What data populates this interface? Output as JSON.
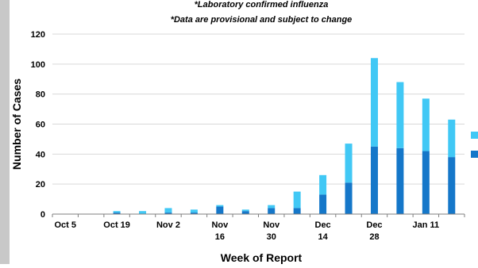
{
  "chart_data": {
    "type": "bar",
    "stacked": true,
    "title_lines": [
      "*Laboratory confirmed influenza",
      "*Data are provisional and subject to change"
    ],
    "xlabel": "Week of Report",
    "ylabel": "Number of Cases",
    "ylim": [
      0,
      120
    ],
    "yticks": [
      0,
      20,
      40,
      60,
      80,
      100,
      120
    ],
    "grid": true,
    "legend_position": "right",
    "x_tick_labels": [
      {
        "week_index": 0,
        "lines": [
          "Oct 5"
        ]
      },
      {
        "week_index": 2,
        "lines": [
          "Oct 19"
        ]
      },
      {
        "week_index": 4,
        "lines": [
          "Nov 2"
        ]
      },
      {
        "week_index": 6,
        "lines": [
          "Nov",
          "16"
        ]
      },
      {
        "week_index": 8,
        "lines": [
          "Nov",
          "30"
        ]
      },
      {
        "week_index": 10,
        "lines": [
          "Dec",
          "14"
        ]
      },
      {
        "week_index": 12,
        "lines": [
          "Dec",
          "28"
        ]
      },
      {
        "week_index": 14,
        "lines": [
          "Jan 11"
        ]
      }
    ],
    "week_count": 16,
    "series": [
      {
        "color": "#1577c9",
        "values": [
          0,
          0,
          1,
          0,
          1,
          1,
          5,
          2,
          4,
          4,
          13,
          21,
          45,
          44,
          42,
          38
        ]
      },
      {
        "color": "#41c8f5",
        "values": [
          0,
          0,
          1,
          2,
          3,
          2,
          1,
          1,
          2,
          11,
          13,
          26,
          59,
          44,
          35,
          25
        ]
      }
    ]
  }
}
